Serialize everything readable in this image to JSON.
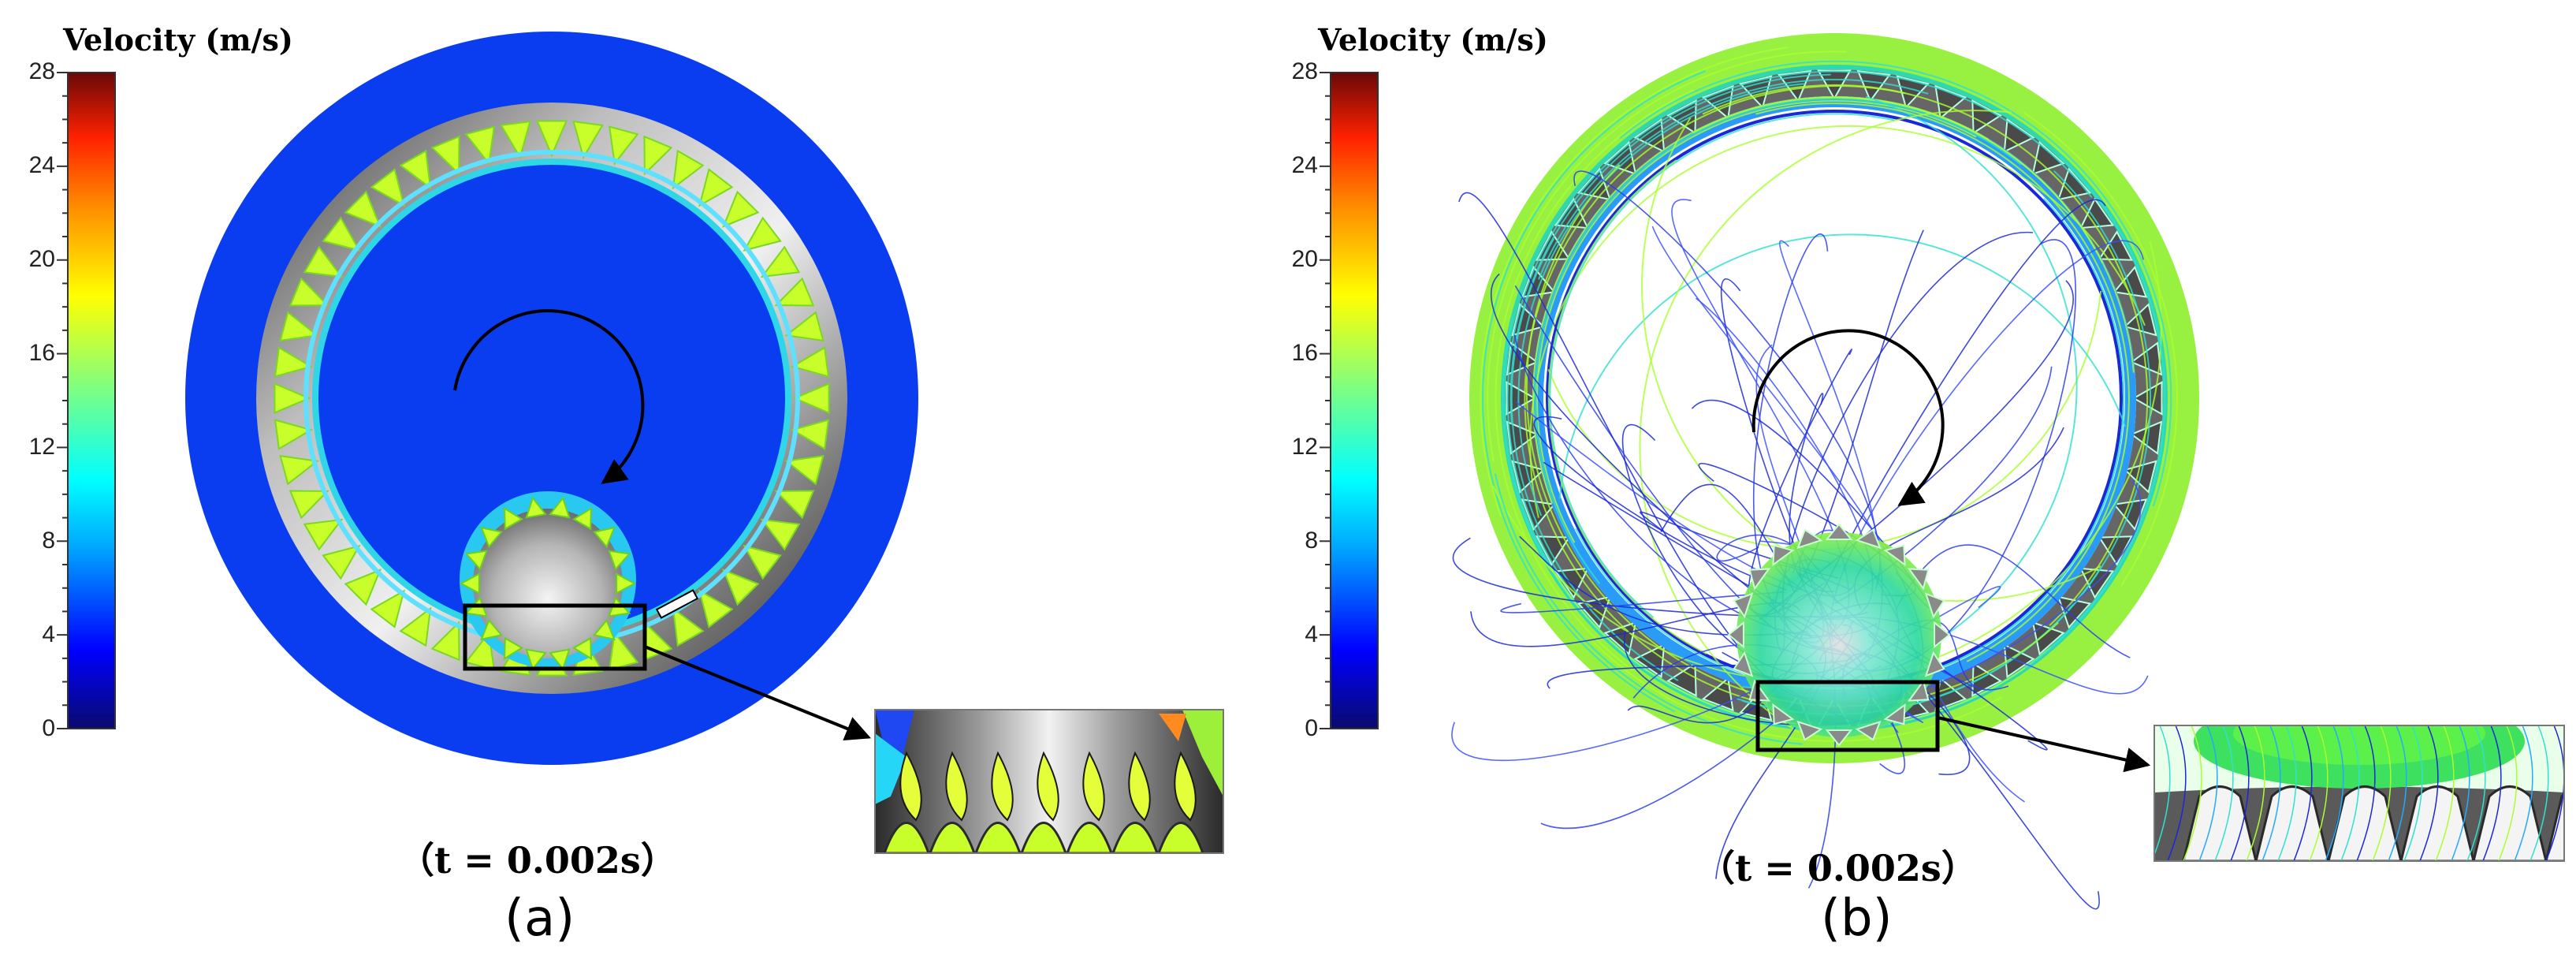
{
  "colorbar": {
    "title": "Velocity (m/s)",
    "ticks": [
      "28",
      "24",
      "20",
      "16",
      "12",
      "8",
      "4",
      "0"
    ],
    "colors": [
      "#0a0a6e",
      "#0000ff",
      "#00aaff",
      "#00ffff",
      "#7fff7f",
      "#ffff00",
      "#ff8800",
      "#ff2200",
      "#7a0a0a"
    ]
  },
  "panels": [
    {
      "id": "a",
      "time_label": "（t = 0.002s）",
      "panel_label": "(a)"
    },
    {
      "id": "b",
      "time_label": "（t = 0.002s）",
      "panel_label": "(b)"
    }
  ],
  "colors": {
    "background_fluid": "#0a3cf0",
    "gear_steel": "#8a8a8a",
    "teeth_high_velocity": "#c8ff2a",
    "streamline_low": "#1a28d8",
    "streamline_mid": "#30e0d0",
    "streamline_high": "#aaff30"
  },
  "icons": [
    "rotation-arrow-icon",
    "zoom-pointer-arrow-icon"
  ]
}
